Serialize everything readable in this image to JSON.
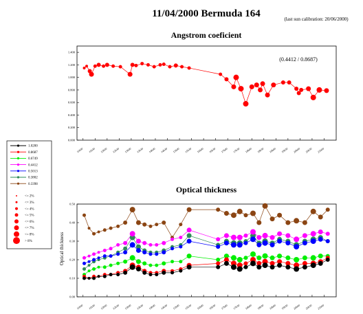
{
  "title": "11/04/2000   Bermuda 164",
  "subtitle": "(last sun calibration: 20/06/2000)",
  "x_tick_labels": [
    "11h00",
    "11h30",
    "12h00",
    "12h30",
    "13h00",
    "13h30",
    "14h00",
    "14h30",
    "15h00",
    "15h30",
    "16h00",
    "16h30",
    "17h00",
    "17h30",
    "18h00",
    "18h30",
    "19h00",
    "19h30",
    "20h00",
    "20h30",
    "21h00"
  ],
  "legend": {
    "wavelengths": [
      {
        "label": "1.0200",
        "color": "#000000"
      },
      {
        "label": "0.8687",
        "color": "#ff0000"
      },
      {
        "label": "0.6749",
        "color": "#00ee00"
      },
      {
        "label": "0.4412",
        "color": "#ff00ff"
      },
      {
        "label": "0.5013",
        "color": "#0000ff"
      },
      {
        "label": "0.3802",
        "color": "#2e8b57"
      },
      {
        "label": "0.3398",
        "color": "#8b4513"
      }
    ],
    "cloud_sizes": [
      {
        "label": "<= 2%",
        "r": 1
      },
      {
        "label": "<= 3%",
        "r": 1.5
      },
      {
        "label": "<= 4%",
        "r": 2
      },
      {
        "label": "<= 5%",
        "r": 2.5
      },
      {
        "label": "<= 6%",
        "r": 3
      },
      {
        "label": "<= 7%",
        "r": 3.5
      },
      {
        "label": "<= 8%",
        "r": 4
      },
      {
        "label": "> 8%",
        "r": 5
      }
    ]
  },
  "chart_data": [
    {
      "type": "line",
      "title": "Angstrom coeficient",
      "annotation": "(0.4412 / 0.8687)",
      "xlabel": "",
      "ylabel": "",
      "ylim": [
        0,
        1.5
      ],
      "y_ticks": [
        "0.000",
        "0.200",
        "0.400",
        "0.600",
        "0.800",
        "1.000",
        "1.200",
        "1.400"
      ],
      "series": [
        {
          "color": "#ff0000",
          "x": [
            11.05,
            11.15,
            11.28,
            11.35,
            11.5,
            11.65,
            11.85,
            12.0,
            12.25,
            12.55,
            12.95,
            13.05,
            13.2,
            13.45,
            13.7,
            13.95,
            14.2,
            14.35,
            14.6,
            14.85,
            15.1,
            15.4,
            16.7,
            16.95,
            17.25,
            17.35,
            17.55,
            17.75,
            18.0,
            18.2,
            18.35,
            18.45,
            18.65,
            18.9,
            19.3,
            19.55,
            19.85,
            19.95,
            20.05,
            20.35,
            20.55,
            20.8,
            21.1
          ],
          "y": [
            1.15,
            1.18,
            1.1,
            1.05,
            1.18,
            1.2,
            1.18,
            1.2,
            1.18,
            1.17,
            1.05,
            1.2,
            1.19,
            1.22,
            1.2,
            1.17,
            1.2,
            1.21,
            1.17,
            1.19,
            1.17,
            1.15,
            1.05,
            0.97,
            0.85,
            1.0,
            0.82,
            0.58,
            0.85,
            0.88,
            0.8,
            0.9,
            0.72,
            0.88,
            0.92,
            0.92,
            0.82,
            0.75,
            0.8,
            0.82,
            0.68,
            0.8,
            0.79
          ],
          "cloud": [
            4,
            4,
            6,
            7,
            5,
            6,
            5,
            6,
            5,
            5,
            7,
            6,
            5,
            5,
            5,
            5,
            5,
            5,
            5,
            6,
            5,
            5,
            5,
            6,
            7,
            8,
            8,
            8,
            7,
            7,
            7,
            7,
            7,
            7,
            6,
            6,
            6,
            6,
            6,
            7,
            8,
            8,
            7
          ]
        }
      ]
    },
    {
      "type": "line",
      "title": "Optical thickness",
      "xlabel": "",
      "ylabel": "Optical thickness",
      "ylim": [
        0,
        0.5
      ],
      "y_ticks": [
        "0.00",
        "0.10",
        "0.20",
        "0.30",
        "0.40",
        "0.50"
      ],
      "x": [
        11.05,
        11.25,
        11.45,
        11.65,
        11.9,
        12.15,
        12.45,
        12.75,
        13.05,
        13.3,
        13.55,
        13.8,
        14.05,
        14.35,
        14.7,
        15.05,
        15.4,
        16.6,
        16.95,
        17.25,
        17.5,
        17.75,
        18.05,
        18.3,
        18.55,
        18.85,
        19.15,
        19.5,
        19.85,
        20.2,
        20.55,
        20.85,
        21.15
      ],
      "cloud": [
        5,
        4,
        5,
        4,
        5,
        5,
        5,
        6,
        8,
        7,
        6,
        5,
        5,
        6,
        5,
        5,
        7,
        6,
        7,
        8,
        8,
        6,
        8,
        7,
        8,
        7,
        7,
        7,
        8,
        7,
        8,
        7,
        6
      ],
      "series": [
        {
          "color": "#000000",
          "values": [
            0.1,
            0.1,
            0.1,
            0.11,
            0.11,
            0.12,
            0.12,
            0.13,
            0.16,
            0.15,
            0.13,
            0.12,
            0.12,
            0.13,
            0.13,
            0.14,
            0.16,
            0.16,
            0.18,
            0.16,
            0.15,
            0.16,
            0.18,
            0.16,
            0.17,
            0.16,
            0.17,
            0.16,
            0.15,
            0.16,
            0.17,
            0.18,
            0.2
          ]
        },
        {
          "color": "#ff0000",
          "values": [
            0.11,
            0.1,
            0.11,
            0.11,
            0.12,
            0.12,
            0.13,
            0.14,
            0.17,
            0.16,
            0.14,
            0.13,
            0.13,
            0.14,
            0.14,
            0.15,
            0.17,
            0.18,
            0.2,
            0.18,
            0.17,
            0.18,
            0.2,
            0.18,
            0.19,
            0.18,
            0.19,
            0.18,
            0.17,
            0.18,
            0.18,
            0.19,
            0.21
          ]
        },
        {
          "color": "#00ee00",
          "values": [
            0.12,
            0.14,
            0.15,
            0.16,
            0.16,
            0.17,
            0.18,
            0.19,
            0.21,
            0.19,
            0.18,
            0.17,
            0.17,
            0.18,
            0.19,
            0.19,
            0.22,
            0.2,
            0.22,
            0.21,
            0.2,
            0.21,
            0.23,
            0.21,
            0.22,
            0.21,
            0.22,
            0.21,
            0.2,
            0.21,
            0.21,
            0.22,
            0.22
          ]
        },
        {
          "color": "#ff00ff",
          "values": [
            0.21,
            0.22,
            0.23,
            0.24,
            0.25,
            0.26,
            0.28,
            0.29,
            0.34,
            0.3,
            0.29,
            0.28,
            0.28,
            0.29,
            0.31,
            0.32,
            0.36,
            0.31,
            0.33,
            0.32,
            0.32,
            0.33,
            0.35,
            0.32,
            0.33,
            0.32,
            0.34,
            0.33,
            0.31,
            0.33,
            0.34,
            0.35,
            0.34
          ]
        },
        {
          "color": "#0000ff",
          "values": [
            0.18,
            0.19,
            0.2,
            0.21,
            0.22,
            0.22,
            0.23,
            0.24,
            0.28,
            0.25,
            0.24,
            0.23,
            0.23,
            0.24,
            0.26,
            0.27,
            0.3,
            0.27,
            0.29,
            0.28,
            0.28,
            0.29,
            0.31,
            0.28,
            0.29,
            0.28,
            0.3,
            0.29,
            0.27,
            0.29,
            0.3,
            0.31,
            0.3
          ]
        },
        {
          "color": "#2e8b57",
          "values": [
            0.15,
            0.17,
            0.19,
            0.2,
            0.21,
            0.22,
            0.24,
            0.26,
            0.32,
            0.27,
            0.25,
            0.24,
            0.24,
            0.25,
            0.27,
            0.28,
            0.33,
            0.28,
            0.3,
            0.29,
            0.29,
            0.3,
            0.33,
            0.29,
            0.3,
            0.29,
            0.31,
            0.3,
            0.28,
            0.3,
            0.31,
            0.32,
            0.3
          ]
        },
        {
          "color": "#8b4513",
          "values": [
            0.44,
            0.37,
            0.34,
            0.35,
            0.36,
            0.37,
            0.38,
            0.4,
            0.47,
            0.4,
            0.39,
            0.38,
            0.39,
            0.4,
            0.32,
            0.39,
            0.47,
            0.47,
            0.45,
            0.44,
            0.46,
            0.44,
            0.45,
            0.4,
            0.49,
            0.42,
            0.44,
            0.4,
            0.41,
            0.4,
            0.46,
            0.43,
            0.47
          ]
        }
      ]
    }
  ]
}
